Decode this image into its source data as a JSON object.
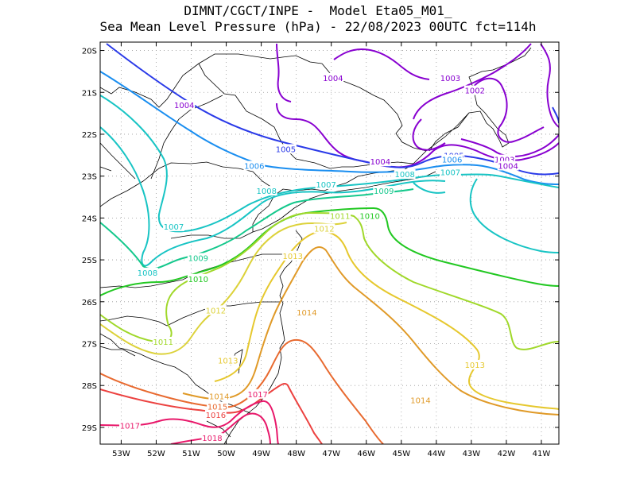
{
  "title": {
    "line1": "DIMNT/CGCT/INPE -  Model Eta05_M01_",
    "line2": "Sea Mean Level Pressure (hPa) - 22/08/2023 00UTC fct=114h"
  },
  "chart_data": {
    "type": "contour-map",
    "variable": "Sea Mean Level Pressure",
    "units": "hPa",
    "longitude_range": [
      -53.6,
      -40.5
    ],
    "latitude_range": [
      -29.4,
      -19.8
    ],
    "x_ticks": [
      "53W",
      "52W",
      "51W",
      "50W",
      "49W",
      "48W",
      "47W",
      "46W",
      "45W",
      "44W",
      "43W",
      "42W",
      "41W"
    ],
    "y_ticks": [
      "20S",
      "21S",
      "22S",
      "23S",
      "24S",
      "25S",
      "26S",
      "27S",
      "28S",
      "29S"
    ],
    "contours": [
      {
        "level": 1002,
        "color": "#8800d0"
      },
      {
        "level": 1003,
        "color": "#8800d0"
      },
      {
        "level": 1004,
        "color": "#8800d0"
      },
      {
        "level": 1005,
        "color": "#2a3ae8"
      },
      {
        "level": 1006,
        "color": "#1a8ef0"
      },
      {
        "level": 1007,
        "color": "#18c4c4"
      },
      {
        "level": 1008,
        "color": "#18c4c4"
      },
      {
        "level": 1009,
        "color": "#14c88c"
      },
      {
        "level": 1010,
        "color": "#22c822"
      },
      {
        "level": 1011,
        "color": "#a0d82a"
      },
      {
        "level": 1012,
        "color": "#dcd23a"
      },
      {
        "level": 1013,
        "color": "#e6c82e"
      },
      {
        "level": 1014,
        "color": "#e09a28"
      },
      {
        "level": 1015,
        "color": "#e86a30"
      },
      {
        "level": 1016,
        "color": "#ec4240"
      },
      {
        "level": 1017,
        "color": "#e8186a"
      },
      {
        "level": 1018,
        "color": "#e8186a"
      }
    ],
    "labels": [
      {
        "text": "1004",
        "lon": -46.95,
        "lat": -20.65,
        "level": 1004
      },
      {
        "text": "1003",
        "lon": -43.6,
        "lat": -20.65,
        "level": 1003
      },
      {
        "text": "1002",
        "lon": -42.9,
        "lat": -20.95,
        "level": 1002
      },
      {
        "text": "1004",
        "lon": -51.2,
        "lat": -21.3,
        "level": 1004
      },
      {
        "text": "1005",
        "lon": -48.3,
        "lat": -22.35,
        "level": 1005
      },
      {
        "text": "1004",
        "lon": -45.6,
        "lat": -22.65,
        "level": 1004
      },
      {
        "text": "1005",
        "lon": -43.5,
        "lat": -22.5,
        "level": 1005
      },
      {
        "text": "1006",
        "lon": -43.55,
        "lat": -22.6,
        "level": 1006
      },
      {
        "text": "1003",
        "lon": -42.05,
        "lat": -22.6,
        "level": 1003
      },
      {
        "text": "1004",
        "lon": -41.95,
        "lat": -22.75,
        "level": 1004
      },
      {
        "text": "1006",
        "lon": -49.2,
        "lat": -22.75,
        "level": 1006
      },
      {
        "text": "1008",
        "lon": -44.9,
        "lat": -22.95,
        "level": 1008
      },
      {
        "text": "1007",
        "lon": -43.6,
        "lat": -22.9,
        "level": 1007
      },
      {
        "text": "1007",
        "lon": -47.15,
        "lat": -23.2,
        "level": 1007
      },
      {
        "text": "1008",
        "lon": -48.85,
        "lat": -23.35,
        "level": 1008
      },
      {
        "text": "1009",
        "lon": -45.5,
        "lat": -23.35,
        "level": 1009
      },
      {
        "text": "1011",
        "lon": -46.75,
        "lat": -23.95,
        "level": 1011
      },
      {
        "text": "1010",
        "lon": -45.9,
        "lat": -23.95,
        "level": 1010
      },
      {
        "text": "1007",
        "lon": -51.5,
        "lat": -24.2,
        "level": 1007
      },
      {
        "text": "1012",
        "lon": -47.2,
        "lat": -24.25,
        "level": 1012
      },
      {
        "text": "1013",
        "lon": -48.1,
        "lat": -24.9,
        "level": 1013
      },
      {
        "text": "1009",
        "lon": -50.8,
        "lat": -24.95,
        "level": 1009
      },
      {
        "text": "1008",
        "lon": -52.25,
        "lat": -25.3,
        "level": 1008
      },
      {
        "text": "1010",
        "lon": -50.8,
        "lat": -25.45,
        "level": 1010
      },
      {
        "text": "1012",
        "lon": -50.3,
        "lat": -26.2,
        "level": 1012
      },
      {
        "text": "1014",
        "lon": -47.7,
        "lat": -26.25,
        "level": 1014
      },
      {
        "text": "1011",
        "lon": -51.8,
        "lat": -26.95,
        "level": 1011
      },
      {
        "text": "1013",
        "lon": -49.95,
        "lat": -27.4,
        "level": 1013
      },
      {
        "text": "1013",
        "lon": -42.9,
        "lat": -27.5,
        "level": 1013
      },
      {
        "text": "1014",
        "lon": -50.2,
        "lat": -28.25,
        "level": 1014
      },
      {
        "text": "1017",
        "lon": -49.1,
        "lat": -28.2,
        "level": 1017
      },
      {
        "text": "1014",
        "lon": -44.45,
        "lat": -28.35,
        "level": 1014
      },
      {
        "text": "1015",
        "lon": -50.25,
        "lat": -28.5,
        "level": 1015
      },
      {
        "text": "1016",
        "lon": -50.3,
        "lat": -28.7,
        "level": 1016
      },
      {
        "text": "1017",
        "lon": -52.75,
        "lat": -28.95,
        "level": 1017
      },
      {
        "text": "1018",
        "lon": -50.4,
        "lat": -29.25,
        "level": 1018
      }
    ]
  }
}
